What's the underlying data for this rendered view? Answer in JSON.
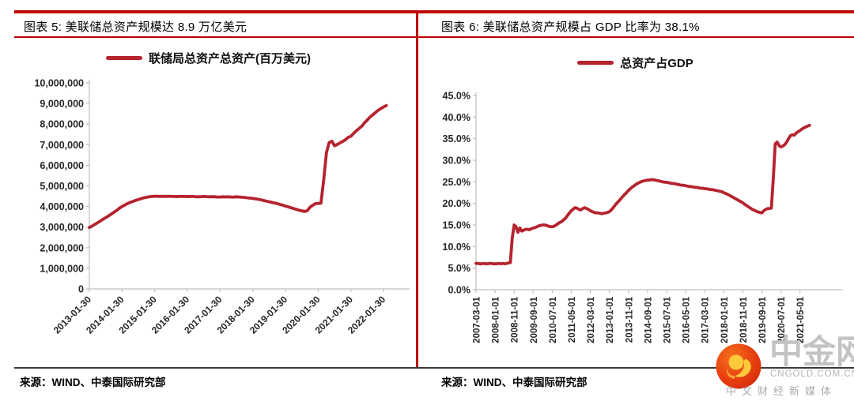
{
  "left_panel": {
    "title": "图表 5: 美联储总资产规模达 8.9 万亿美元",
    "legend": "联储局总资产总资产(百万美元)",
    "source": "来源：WIND、中泰国际研究部"
  },
  "right_panel": {
    "title": "图表 6: 美联储总资产规模占 GDP 比率为 38.1%",
    "legend": "总资产占GDP",
    "source": "来源：WIND、中泰国际研究部"
  },
  "watermark": {
    "name": "中金网",
    "domain": "CNGOLD.COM.CN",
    "tagline": "中文财经新媒体"
  },
  "colors": {
    "accent_red": "#C00000",
    "series_red": "#B5232E",
    "axis_gray": "#BFBFBF",
    "tick_text": "#262626",
    "watermark_gray": "#c3c3c3"
  },
  "chart_data": [
    {
      "type": "line",
      "title": "联储局总资产总资产(百万美元)",
      "legend": "联储局总资产总资产(百万美元)",
      "x_start": "2013-01",
      "x_step_months": 1,
      "x_tick_labels": [
        "2013-01-30",
        "2014-01-30",
        "2015-01-30",
        "2016-01-30",
        "2017-01-30",
        "2018-01-30",
        "2019-01-30",
        "2020-01-30",
        "2021-01-30",
        "2022-01-30"
      ],
      "x_tick_interval_months": 12,
      "y_tick_labels": [
        "0",
        "1,000,000",
        "2,000,000",
        "3,000,000",
        "4,000,000",
        "5,000,000",
        "6,000,000",
        "7,000,000",
        "8,000,000",
        "9,000,000",
        "10,000,000"
      ],
      "ylim": [
        0,
        10000000
      ],
      "grid": false,
      "legend_position": "top",
      "values": [
        2980000,
        3050000,
        3130000,
        3210000,
        3290000,
        3380000,
        3460000,
        3540000,
        3630000,
        3720000,
        3810000,
        3910000,
        4000000,
        4070000,
        4140000,
        4200000,
        4250000,
        4300000,
        4340000,
        4380000,
        4420000,
        4450000,
        4470000,
        4490000,
        4500000,
        4495000,
        4490000,
        4495000,
        4490000,
        4500000,
        4490000,
        4485000,
        4480000,
        4490000,
        4485000,
        4490000,
        4480000,
        4490000,
        4485000,
        4475000,
        4470000,
        4480000,
        4490000,
        4480000,
        4470000,
        4480000,
        4470000,
        4460000,
        4460000,
        4470000,
        4465000,
        4470000,
        4460000,
        4455000,
        4470000,
        4460000,
        4450000,
        4440000,
        4420000,
        4405000,
        4390000,
        4370000,
        4350000,
        4320000,
        4290000,
        4260000,
        4230000,
        4200000,
        4170000,
        4140000,
        4100000,
        4060000,
        4020000,
        3980000,
        3940000,
        3900000,
        3860000,
        3820000,
        3790000,
        3760000,
        3800000,
        3970000,
        4060000,
        4140000,
        4150000,
        4160000,
        5300000,
        6600000,
        7100000,
        7170000,
        6950000,
        7010000,
        7090000,
        7160000,
        7240000,
        7360000,
        7410000,
        7550000,
        7680000,
        7790000,
        7900000,
        8060000,
        8200000,
        8340000,
        8450000,
        8560000,
        8670000,
        8760000,
        8830000,
        8900000
      ]
    },
    {
      "type": "line",
      "title": "总资产占GDP",
      "legend": "总资产占GDP",
      "x_start": "2007-03",
      "x_step_months": 1,
      "x_tick_labels": [
        "2007-03-01",
        "2008-01-01",
        "2008-11-01",
        "2009-09-01",
        "2010-07-01",
        "2011-05-01",
        "2012-03-01",
        "2013-01-01",
        "2013-11-01",
        "2014-09-01",
        "2015-07-01",
        "2016-05-01",
        "2017-03-01",
        "2018-01-01",
        "2018-11-01",
        "2019-09-01",
        "2020-07-01",
        "2021-05-01"
      ],
      "x_tick_interval_months": 10,
      "y_tick_labels": [
        "0.0%",
        "5.0%",
        "10.0%",
        "15.0%",
        "20.0%",
        "25.0%",
        "30.0%",
        "35.0%",
        "40.0%",
        "45.0%"
      ],
      "ylim": [
        0,
        45
      ],
      "grid": false,
      "legend_position": "top",
      "values": [
        6.1,
        6.1,
        6.0,
        6.0,
        6.1,
        6.0,
        6.0,
        6.1,
        6.1,
        6.0,
        6.0,
        6.0,
        6.1,
        6.0,
        6.1,
        6.0,
        6.1,
        6.2,
        6.3,
        12.0,
        15.0,
        14.6,
        13.3,
        14.3,
        13.6,
        13.8,
        14.0,
        14.0,
        13.9,
        14.1,
        14.3,
        14.4,
        14.6,
        14.8,
        14.9,
        15.0,
        15.0,
        14.9,
        14.7,
        14.6,
        14.6,
        14.7,
        15.0,
        15.3,
        15.6,
        15.8,
        16.2,
        16.6,
        17.2,
        17.8,
        18.3,
        18.7,
        19.0,
        18.9,
        18.6,
        18.5,
        18.8,
        19.0,
        18.8,
        18.6,
        18.3,
        18.1,
        17.9,
        17.8,
        17.8,
        17.7,
        17.6,
        17.7,
        17.8,
        17.9,
        18.1,
        18.5,
        19.0,
        19.6,
        20.1,
        20.6,
        21.1,
        21.6,
        22.1,
        22.5,
        23.0,
        23.4,
        23.8,
        24.1,
        24.4,
        24.7,
        24.9,
        25.1,
        25.2,
        25.3,
        25.4,
        25.4,
        25.5,
        25.5,
        25.4,
        25.3,
        25.2,
        25.1,
        25.0,
        24.9,
        24.9,
        24.8,
        24.7,
        24.6,
        24.6,
        24.5,
        24.4,
        24.3,
        24.2,
        24.2,
        24.1,
        24.0,
        23.9,
        23.9,
        23.8,
        23.7,
        23.7,
        23.6,
        23.5,
        23.5,
        23.4,
        23.4,
        23.3,
        23.2,
        23.2,
        23.1,
        23.0,
        22.9,
        22.8,
        22.7,
        22.5,
        22.3,
        22.1,
        21.9,
        21.6,
        21.4,
        21.1,
        20.9,
        20.6,
        20.4,
        20.1,
        19.8,
        19.5,
        19.2,
        18.9,
        18.6,
        18.4,
        18.2,
        18.0,
        17.9,
        17.8,
        18.3,
        18.6,
        18.8,
        18.8,
        18.9,
        26.0,
        33.8,
        34.2,
        33.4,
        33.1,
        33.3,
        33.6,
        34.2,
        35.0,
        35.7,
        35.9,
        35.8,
        36.3,
        36.6,
        36.9,
        37.2,
        37.5,
        37.7,
        37.9,
        38.1
      ]
    }
  ]
}
